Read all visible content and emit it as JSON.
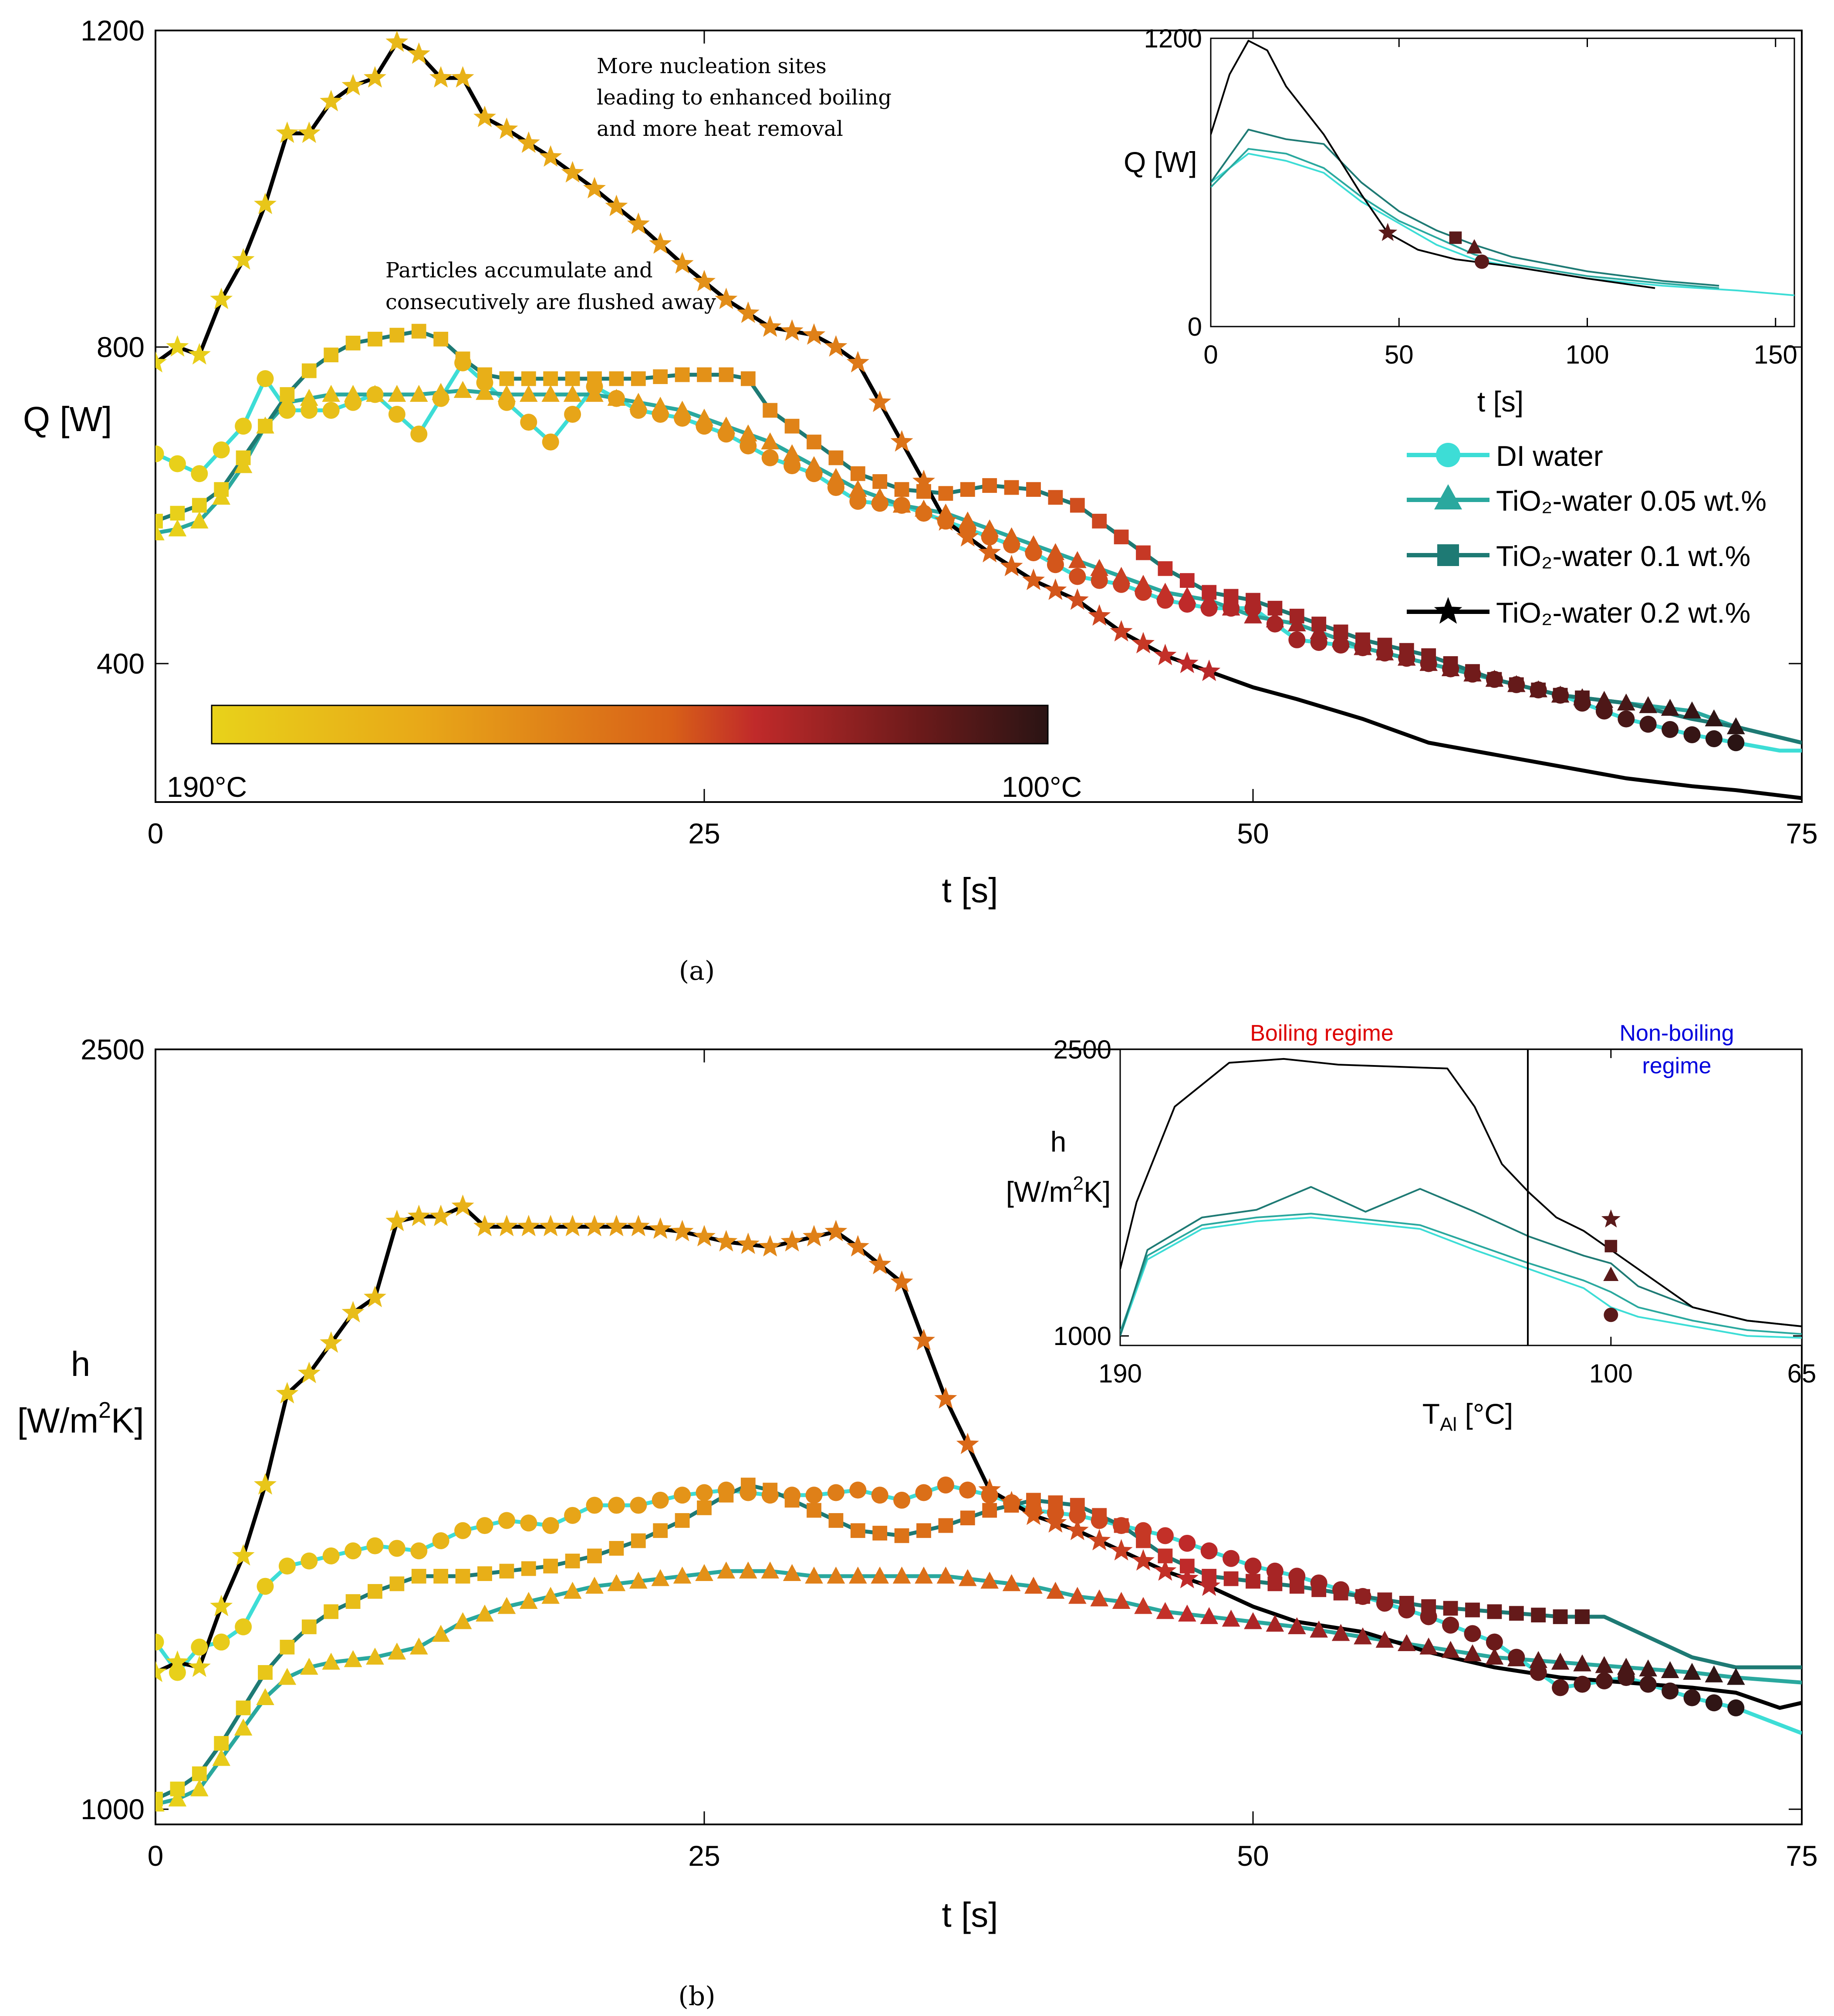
{
  "colors": {
    "di": "#3DDDD6",
    "tio005": "#2AA89E",
    "tio01": "#1E7A74",
    "tio02": "#000000",
    "boiling_text": "#DD0000",
    "nonboiling_text": "#0000DD"
  },
  "legend": {
    "di": "DI water",
    "tio005": "TiO₂-water 0.05 wt.%",
    "tio01": "TiO₂-water 0.1 wt.%",
    "tio02": "TiO₂-water 0.2 wt.%"
  },
  "colorbar": {
    "left_label": "190°C",
    "right_label": "100°C"
  },
  "captions": {
    "a": "(a)",
    "b": "(b)"
  },
  "chart_data": [
    {
      "type": "line",
      "title": "(a)",
      "xlabel": "t [s]",
      "ylabel": "Q [W]",
      "xlim": [
        0,
        75
      ],
      "ylim": [
        225,
        1200
      ],
      "xticks": [
        0,
        25,
        50,
        75
      ],
      "yticks": [
        400,
        800,
        1200
      ],
      "annotations": [
        "More nucleation sites",
        "leading to enhanced boiling",
        "and more heat removal",
        "Particles accumulate and",
        "consecutively are flushed away"
      ],
      "series": [
        {
          "name": "DI water",
          "x": [
            0,
            2,
            4,
            5,
            6,
            8,
            10,
            12,
            14,
            16,
            18,
            20,
            22,
            24,
            26,
            28,
            30,
            32,
            34,
            36,
            38,
            40,
            42,
            44,
            46,
            48,
            50,
            52,
            55,
            58,
            61,
            64,
            67,
            70,
            72,
            74,
            75
          ],
          "y": [
            665,
            640,
            700,
            760,
            720,
            720,
            740,
            690,
            780,
            730,
            680,
            750,
            720,
            710,
            690,
            660,
            640,
            605,
            600,
            580,
            560,
            540,
            510,
            500,
            480,
            470,
            470,
            430,
            420,
            400,
            380,
            360,
            330,
            310,
            300,
            290,
            290
          ]
        },
        {
          "name": "TiO2-water 0.05 wt.%",
          "x": [
            0,
            1,
            2,
            3,
            4,
            5,
            6,
            8,
            10,
            12,
            14,
            16,
            18,
            20,
            22,
            24,
            26,
            28,
            30,
            32,
            34,
            36,
            38,
            40,
            42,
            44,
            46,
            48,
            50,
            52,
            55,
            58,
            61,
            64,
            67,
            70,
            72,
            75
          ],
          "y": [
            565,
            570,
            580,
            610,
            650,
            700,
            730,
            740,
            740,
            740,
            745,
            740,
            740,
            740,
            730,
            720,
            700,
            680,
            650,
            620,
            600,
            590,
            570,
            550,
            530,
            510,
            490,
            480,
            460,
            450,
            420,
            400,
            380,
            360,
            350,
            340,
            320,
            300
          ]
        },
        {
          "name": "TiO2-water 0.1 wt.%",
          "x": [
            0,
            1,
            2,
            3,
            4,
            5,
            6,
            7,
            8,
            9,
            10,
            11,
            12,
            13,
            14,
            15,
            16,
            18,
            20,
            22,
            24,
            26,
            27,
            28,
            30,
            32,
            34,
            36,
            38,
            40,
            42,
            44,
            46,
            48,
            50,
            52,
            55,
            58,
            61,
            64,
            67,
            70,
            72,
            75
          ],
          "y": [
            580,
            590,
            600,
            620,
            660,
            700,
            740,
            770,
            790,
            805,
            810,
            815,
            820,
            810,
            785,
            765,
            760,
            760,
            760,
            760,
            765,
            765,
            760,
            720,
            680,
            640,
            620,
            615,
            625,
            620,
            600,
            560,
            520,
            490,
            480,
            460,
            430,
            410,
            380,
            360,
            350,
            330,
            320,
            300
          ]
        },
        {
          "name": "TiO2-water 0.2 wt.%",
          "x": [
            0,
            1,
            2,
            3,
            4,
            5,
            6,
            7,
            8,
            9,
            10,
            11,
            12,
            13,
            14,
            15,
            16,
            18,
            20,
            22,
            24,
            26,
            28,
            30,
            31,
            32,
            34,
            36,
            38,
            40,
            42,
            44,
            46,
            48,
            50,
            52,
            55,
            58,
            61,
            64,
            67,
            70,
            72,
            75
          ],
          "y": [
            780,
            800,
            790,
            860,
            910,
            980,
            1070,
            1070,
            1110,
            1130,
            1140,
            1185,
            1170,
            1140,
            1140,
            1090,
            1075,
            1040,
            1000,
            955,
            905,
            860,
            825,
            815,
            800,
            780,
            680,
            580,
            540,
            505,
            480,
            440,
            410,
            390,
            370,
            355,
            330,
            300,
            285,
            270,
            255,
            245,
            240,
            230
          ]
        }
      ]
    },
    {
      "type": "line",
      "title": "(a) inset",
      "xlabel": "t [s]",
      "ylabel": "Q [W]",
      "xlim": [
        0,
        155
      ],
      "ylim": [
        0,
        1200
      ],
      "xticks": [
        0,
        50,
        100,
        150
      ],
      "yticks": [
        0,
        1200
      ],
      "series": [
        {
          "name": "DI water",
          "x": [
            0,
            10,
            20,
            30,
            40,
            50,
            60,
            70,
            80,
            100,
            120,
            140,
            155
          ],
          "y": [
            600,
            720,
            690,
            640,
            520,
            430,
            340,
            280,
            250,
            200,
            170,
            150,
            130
          ]
        },
        {
          "name": "TiO2-water 0.05 wt.%",
          "x": [
            0,
            10,
            20,
            30,
            40,
            50,
            60,
            70,
            80,
            100,
            120,
            135
          ],
          "y": [
            580,
            740,
            720,
            660,
            540,
            440,
            370,
            300,
            260,
            210,
            180,
            160
          ]
        },
        {
          "name": "TiO2-water 0.1 wt.%",
          "x": [
            0,
            10,
            20,
            30,
            40,
            50,
            60,
            65,
            70,
            80,
            100,
            120,
            135
          ],
          "y": [
            600,
            820,
            780,
            760,
            600,
            480,
            400,
            370,
            340,
            290,
            230,
            190,
            170
          ]
        },
        {
          "name": "TiO2-water 0.2 wt.%",
          "x": [
            0,
            5,
            10,
            15,
            20,
            30,
            40,
            47,
            55,
            65,
            80,
            100,
            118
          ],
          "y": [
            800,
            1050,
            1190,
            1150,
            1000,
            800,
            550,
            390,
            320,
            280,
            250,
            200,
            160
          ]
        }
      ]
    },
    {
      "type": "line",
      "title": "(b)",
      "xlabel": "t [s]",
      "ylabel": "h [W/m2K]",
      "xlim": [
        0,
        75
      ],
      "ylim": [
        970,
        2500
      ],
      "xticks": [
        0,
        25,
        50,
        75
      ],
      "yticks": [
        1000,
        2500
      ],
      "series": [
        {
          "name": "DI water",
          "x": [
            0,
            1,
            2,
            3,
            4,
            5,
            6,
            7,
            8,
            10,
            12,
            14,
            16,
            18,
            20,
            22,
            24,
            26,
            28,
            30,
            32,
            34,
            36,
            38,
            40,
            42,
            44,
            46,
            48,
            50,
            52,
            55,
            58,
            61,
            64,
            67,
            70,
            72,
            75
          ],
          "y": [
            1330,
            1270,
            1320,
            1330,
            1360,
            1440,
            1480,
            1490,
            1500,
            1520,
            1510,
            1550,
            1570,
            1560,
            1600,
            1600,
            1620,
            1630,
            1620,
            1620,
            1630,
            1610,
            1640,
            1620,
            1590,
            1580,
            1560,
            1540,
            1510,
            1480,
            1460,
            1420,
            1380,
            1330,
            1240,
            1260,
            1220,
            1200,
            1150
          ]
        },
        {
          "name": "TiO2-water 0.05 wt.%",
          "x": [
            0,
            1,
            2,
            3,
            4,
            5,
            6,
            7,
            8,
            10,
            12,
            14,
            16,
            18,
            20,
            22,
            24,
            26,
            28,
            30,
            32,
            34,
            36,
            38,
            40,
            42,
            44,
            46,
            48,
            50,
            52,
            55,
            58,
            61,
            64,
            67,
            70,
            72,
            75
          ],
          "y": [
            1010,
            1020,
            1040,
            1100,
            1160,
            1220,
            1260,
            1280,
            1290,
            1300,
            1320,
            1370,
            1400,
            1420,
            1440,
            1450,
            1460,
            1470,
            1470,
            1460,
            1460,
            1460,
            1460,
            1450,
            1440,
            1420,
            1410,
            1390,
            1380,
            1370,
            1360,
            1340,
            1320,
            1300,
            1290,
            1280,
            1270,
            1260,
            1250
          ]
        },
        {
          "name": "TiO2-water 0.1 wt.%",
          "x": [
            0,
            1,
            2,
            3,
            4,
            5,
            6,
            7,
            8,
            10,
            12,
            14,
            16,
            18,
            20,
            22,
            24,
            26,
            27,
            28,
            30,
            32,
            34,
            36,
            38,
            40,
            42,
            44,
            46,
            48,
            50,
            52,
            55,
            58,
            61,
            64,
            66,
            70,
            72,
            75
          ],
          "y": [
            1020,
            1040,
            1070,
            1130,
            1200,
            1270,
            1320,
            1360,
            1390,
            1430,
            1460,
            1460,
            1470,
            1480,
            1500,
            1530,
            1570,
            1620,
            1640,
            1630,
            1590,
            1550,
            1540,
            1560,
            1590,
            1610,
            1600,
            1560,
            1500,
            1460,
            1450,
            1440,
            1420,
            1400,
            1390,
            1380,
            1380,
            1300,
            1280,
            1280
          ]
        },
        {
          "name": "TiO2-water 0.2 wt.%",
          "x": [
            0,
            1,
            2,
            3,
            4,
            5,
            6,
            7,
            8,
            9,
            10,
            11,
            12,
            13,
            14,
            15,
            16,
            18,
            20,
            22,
            24,
            26,
            28,
            30,
            31,
            32,
            34,
            36,
            38,
            40,
            42,
            44,
            46,
            48,
            50,
            52,
            55,
            58,
            61,
            64,
            67,
            70,
            72,
            74,
            75
          ],
          "y": [
            1270,
            1290,
            1280,
            1400,
            1500,
            1640,
            1820,
            1860,
            1920,
            1980,
            2010,
            2160,
            2170,
            2170,
            2190,
            2150,
            2150,
            2150,
            2150,
            2150,
            2140,
            2120,
            2110,
            2130,
            2140,
            2110,
            2040,
            1810,
            1630,
            1580,
            1550,
            1510,
            1470,
            1440,
            1400,
            1370,
            1350,
            1310,
            1280,
            1260,
            1250,
            1240,
            1230,
            1200,
            1210
          ]
        }
      ]
    },
    {
      "type": "line",
      "title": "(b) inset",
      "xlabel": "T_Al [°C]",
      "ylabel": "h [W/m2K]",
      "xlim": [
        190,
        65
      ],
      "ylim": [
        950,
        2500
      ],
      "xticks": [
        190,
        100,
        65
      ],
      "yticks": [
        1000,
        2500
      ],
      "annotations": [
        "Boiling regime",
        "Non-boiling regime"
      ],
      "series": [
        {
          "name": "DI water",
          "x": [
            190,
            185,
            175,
            165,
            155,
            145,
            135,
            125,
            115,
            105,
            100,
            95,
            85,
            75,
            65
          ],
          "y": [
            1000,
            1400,
            1560,
            1600,
            1620,
            1590,
            1560,
            1450,
            1350,
            1250,
            1150,
            1100,
            1050,
            1000,
            990
          ]
        },
        {
          "name": "TiO2-water 0.05 wt.%",
          "x": [
            190,
            185,
            175,
            165,
            155,
            145,
            135,
            125,
            115,
            105,
            100,
            95,
            85,
            75,
            65
          ],
          "y": [
            1020,
            1420,
            1580,
            1620,
            1640,
            1610,
            1580,
            1480,
            1380,
            1290,
            1230,
            1150,
            1080,
            1030,
            1010
          ]
        },
        {
          "name": "TiO2-water 0.1 wt.%",
          "x": [
            190,
            185,
            175,
            165,
            155,
            145,
            135,
            125,
            115,
            105,
            100,
            95,
            85,
            75,
            65
          ],
          "y": [
            1000,
            1450,
            1620,
            1660,
            1780,
            1650,
            1770,
            1650,
            1520,
            1420,
            1380,
            1260,
            1150,
            1080,
            1050
          ]
        },
        {
          "name": "TiO2-water 0.2 wt.%",
          "x": [
            190,
            187,
            180,
            170,
            160,
            150,
            140,
            130,
            125,
            120,
            115,
            110,
            105,
            100,
            95,
            85,
            75,
            65
          ],
          "y": [
            1350,
            1700,
            2200,
            2430,
            2450,
            2420,
            2410,
            2400,
            2200,
            1900,
            1750,
            1620,
            1550,
            1450,
            1350,
            1150,
            1080,
            1050
          ]
        }
      ]
    }
  ],
  "texts": {
    "a_annot_nucleation": [
      "More nucleation sites",
      "leading to enhanced boiling",
      "and more heat removal"
    ],
    "a_annot_particles": [
      "Particles accumulate and",
      "consecutively are flushed away"
    ],
    "b_inset_boiling": "Boiling regime",
    "b_inset_nonboiling_1": "Non-boiling",
    "b_inset_nonboiling_2": "regime",
    "b_inset_xlabel": "T_Al [°C]"
  }
}
